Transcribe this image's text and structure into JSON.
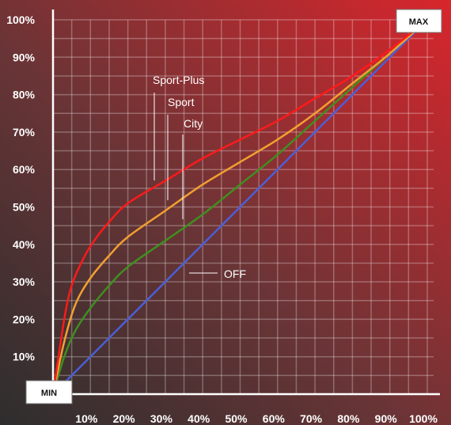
{
  "chart_data": {
    "type": "line",
    "title": "",
    "xlabel": "",
    "ylabel": "",
    "xlim": [
      0,
      100
    ],
    "ylim": [
      0,
      100
    ],
    "grid": true,
    "x_tick_labels": [
      "10%",
      "20%",
      "30%",
      "40%",
      "50%",
      "60%",
      "70%",
      "80%",
      "90%",
      "100%"
    ],
    "y_tick_labels": [
      "10%",
      "20%",
      "30%",
      "40%",
      "50%",
      "60%",
      "70%",
      "80%",
      "90%",
      "100%"
    ],
    "min_label": "MIN",
    "max_label": "MAX",
    "series": [
      {
        "name": "OFF",
        "color": "#4a5fd8",
        "x": [
          0,
          10,
          20,
          30,
          40,
          50,
          60,
          70,
          80,
          90,
          100
        ],
        "y": [
          0,
          10,
          20,
          30,
          40,
          50,
          60,
          70,
          80,
          90,
          100
        ]
      },
      {
        "name": "City",
        "color": "#3f8f1f",
        "x": [
          0,
          3,
          6,
          10,
          15,
          20,
          30,
          40,
          50,
          60,
          70,
          80,
          90,
          100
        ],
        "y": [
          0,
          10,
          17,
          23,
          29,
          34,
          41,
          48,
          56,
          64,
          73,
          82,
          91,
          100
        ]
      },
      {
        "name": "Sport",
        "color": "#f0a030",
        "x": [
          0,
          3,
          6,
          10,
          15,
          20,
          30,
          40,
          50,
          60,
          70,
          80,
          90,
          100
        ],
        "y": [
          0,
          14,
          24,
          31,
          37,
          42,
          49,
          56,
          62,
          68,
          75,
          83,
          91,
          100
        ]
      },
      {
        "name": "Sport-Plus",
        "color": "#ff1a1a",
        "x": [
          0,
          3,
          5,
          8,
          11,
          15,
          20,
          30,
          40,
          50,
          60,
          70,
          80,
          90,
          100
        ],
        "y": [
          0,
          20,
          29,
          36,
          41,
          46,
          51,
          57,
          63,
          68,
          73,
          79,
          85,
          92,
          100
        ]
      }
    ],
    "annotations": [
      {
        "text": "Sport-Plus",
        "series": "Sport-Plus"
      },
      {
        "text": "Sport",
        "series": "Sport"
      },
      {
        "text": "City",
        "series": "City"
      },
      {
        "text": "OFF",
        "series": "OFF"
      }
    ]
  }
}
